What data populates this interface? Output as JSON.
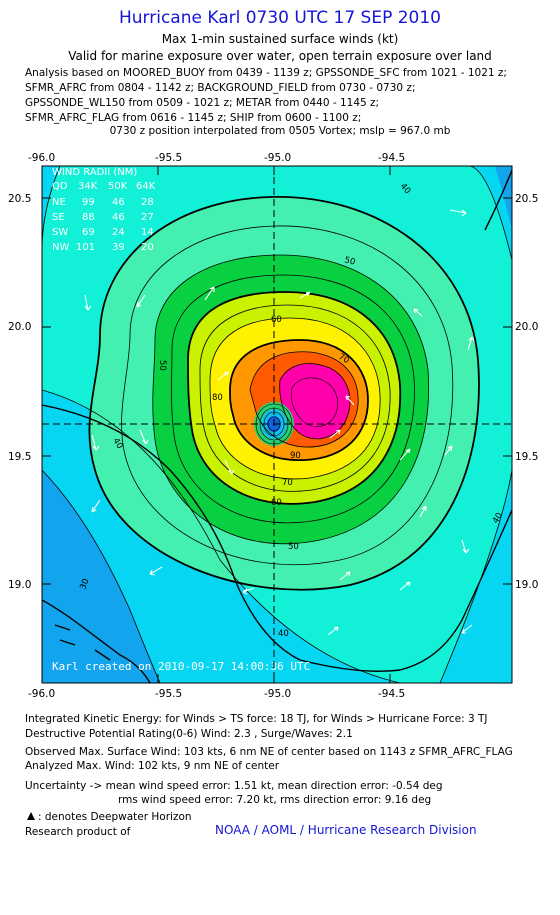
{
  "header": {
    "title": "Hurricane Karl 0730 UTC 17 SEP 2010",
    "subtitle1": "Max 1-min sustained surface winds (kt)",
    "subtitle2": "Valid for marine exposure over water, open terrain exposure over land",
    "analysis_lines": [
      "Analysis based on MOORED_BUOY from 0439 - 1139 z; GPSSONDE_SFC from 1021 - 1021 z;",
      "SFMR_AFRC from 0804 - 1142 z; BACKGROUND_FIELD from 0730 - 0730 z;",
      "GPSSONDE_WL150 from 0509 - 1021 z; METAR from 0440 - 1145 z;",
      "SFMR_AFRC_FLAG from 0616 - 1145 z; SHIP from 0600 - 1100 z;"
    ],
    "position_line": "0730 z position interpolated from 0505 Vortex; mslp = 967.0 mb"
  },
  "chart_data": {
    "type": "contour",
    "x_ticks": [
      "-96.0",
      "-95.5",
      "-95.0",
      "-94.5"
    ],
    "y_ticks": [
      "20.5",
      "20.0",
      "19.5",
      "19.0"
    ],
    "xlim": [
      -96.0,
      -94.1
    ],
    "ylim": [
      18.64,
      20.65
    ],
    "center": {
      "lon": -95.0,
      "lat": 19.62
    },
    "contour_levels_kt": [
      30,
      40,
      50,
      60,
      70,
      80,
      90,
      100
    ],
    "contour_labels": [
      "30",
      "40",
      "40",
      "40",
      "50",
      "50",
      "50",
      "60",
      "60",
      "70",
      "70",
      "80",
      "90",
      "40"
    ],
    "colors": {
      "lt20": "#12a4ec",
      "20_30": "#06d6f2",
      "30_40": "#13f0d8",
      "40_50": "#44f0b0",
      "50_60": "#08d040",
      "60_70": "#c9f200",
      "70_80": "#fff200",
      "80_90": "#ff9800",
      "90_100": "#ff5a00",
      "gt100": "#ff00aa"
    },
    "wind_radii_table": {
      "title": "WIND RADII (NM)",
      "header": [
        "QD",
        "34K",
        "50K",
        "64K"
      ],
      "rows": [
        [
          "NE",
          "99",
          "46",
          "28"
        ],
        [
          "SE",
          "88",
          "46",
          "27"
        ],
        [
          "SW",
          "69",
          "24",
          "14"
        ],
        [
          "NW",
          "101",
          "39",
          "20"
        ]
      ]
    },
    "credit": "Karl    created on 2010-09-17 14:00:36 UTC"
  },
  "footer": {
    "ike": "Integrated Kinetic Energy:  for Winds > TS force: 18 TJ,  for Winds > Hurricane Force: 3 TJ",
    "dpr": "Destructive Potential Rating(0-6)   Wind: 2.3 , Surge/Waves: 2.1",
    "obs_max": "Observed Max. Surface Wind: 103 kts, 6 nm NE of center based on 1143 z SFMR_AFRC_FLAG",
    "ana_max": "Analyzed Max. Wind: 102 kts, 9 nm NE of center",
    "unc1": "Uncertainty -> mean wind speed error: 1.51 kt,   mean direction error:  -0.54 deg",
    "unc2": "rms wind speed error: 7.20 kt,   rms direction error: 9.16 deg",
    "deepwater": ": denotes Deepwater Horizon",
    "research": "Research product of",
    "noaa": "NOAA / AOML / Hurricane Research Division"
  }
}
